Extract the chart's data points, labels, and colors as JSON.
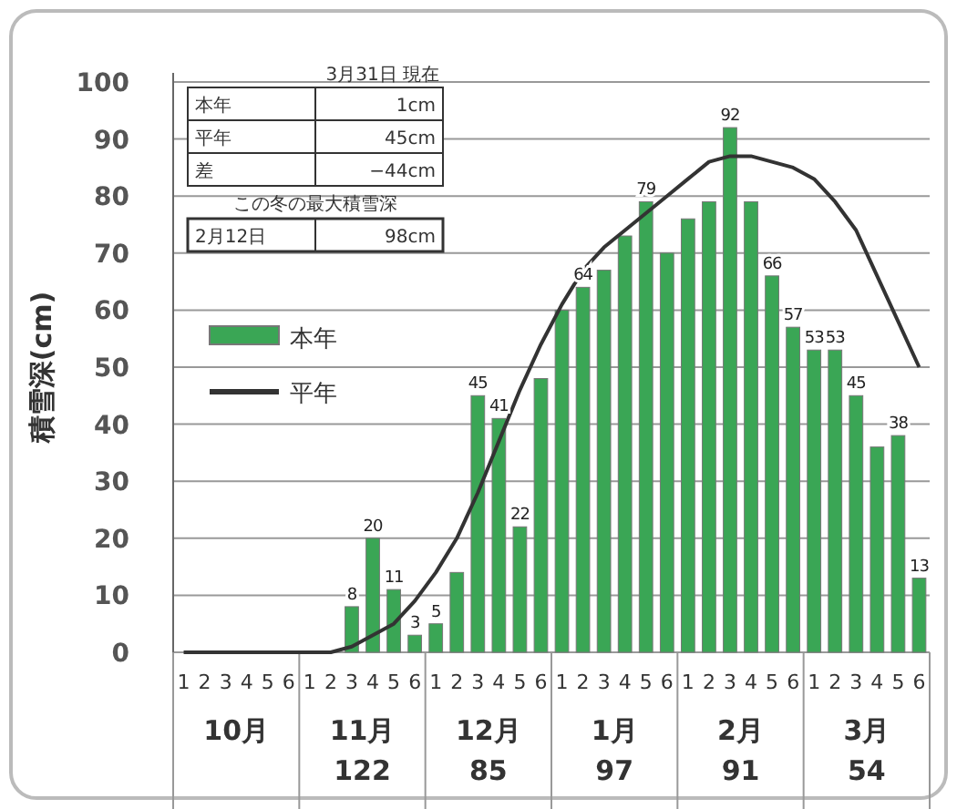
{
  "chart_data": {
    "type": "bar",
    "ylabel": "積雪深(cm)",
    "categories": [
      "1",
      "2",
      "3",
      "4",
      "5",
      "6",
      "1",
      "2",
      "3",
      "4",
      "5",
      "6",
      "1",
      "2",
      "3",
      "4",
      "5",
      "6",
      "1",
      "2",
      "3",
      "4",
      "5",
      "6",
      "1",
      "2",
      "3",
      "4",
      "5",
      "6",
      "1",
      "2",
      "3",
      "4",
      "5",
      "6"
    ],
    "series": [
      {
        "name": "本年",
        "color": "#3aa655",
        "values": [
          0,
          0,
          0,
          0,
          0,
          0,
          0,
          0,
          8,
          20,
          11,
          3,
          5,
          14,
          45,
          41,
          22,
          48,
          60,
          64,
          67,
          73,
          79,
          70,
          76,
          79,
          92,
          79,
          66,
          57,
          53,
          53,
          45,
          36,
          38,
          13
        ],
        "value_labels": [
          null,
          null,
          null,
          null,
          null,
          null,
          null,
          null,
          "8",
          "20",
          "11",
          "3",
          "5",
          null,
          "45",
          "41",
          "22",
          null,
          null,
          "64",
          null,
          null,
          "79",
          null,
          null,
          null,
          "92",
          null,
          "66",
          "57",
          "53",
          "53",
          "45",
          null,
          "38",
          "13"
        ]
      },
      {
        "name": "平年",
        "type": "line",
        "color": "#333333",
        "values": [
          0,
          0,
          0,
          0,
          0,
          0,
          0,
          0,
          1,
          3,
          5,
          9,
          14,
          20,
          28,
          37,
          46,
          54,
          61,
          67,
          71,
          74,
          77,
          80,
          83,
          86,
          87,
          87,
          86,
          85,
          83,
          79,
          74,
          66,
          58,
          50
        ]
      }
    ],
    "ylim": [
      0,
      100
    ],
    "yticks": [
      0,
      10,
      20,
      30,
      40,
      50,
      60,
      70,
      80,
      90,
      100
    ],
    "grid": "y",
    "legend": "left",
    "annotations": [
      "10月",
      "11月",
      "12月",
      "1月",
      "2月",
      "3月",
      "122",
      "85",
      "97",
      "91",
      "54",
      "3月31日 現在",
      "本年",
      "1cm",
      "平年",
      "45cm",
      "差",
      "−44cm",
      "この冬の最大積雪深",
      "2月12日",
      "98cm"
    ]
  }
}
